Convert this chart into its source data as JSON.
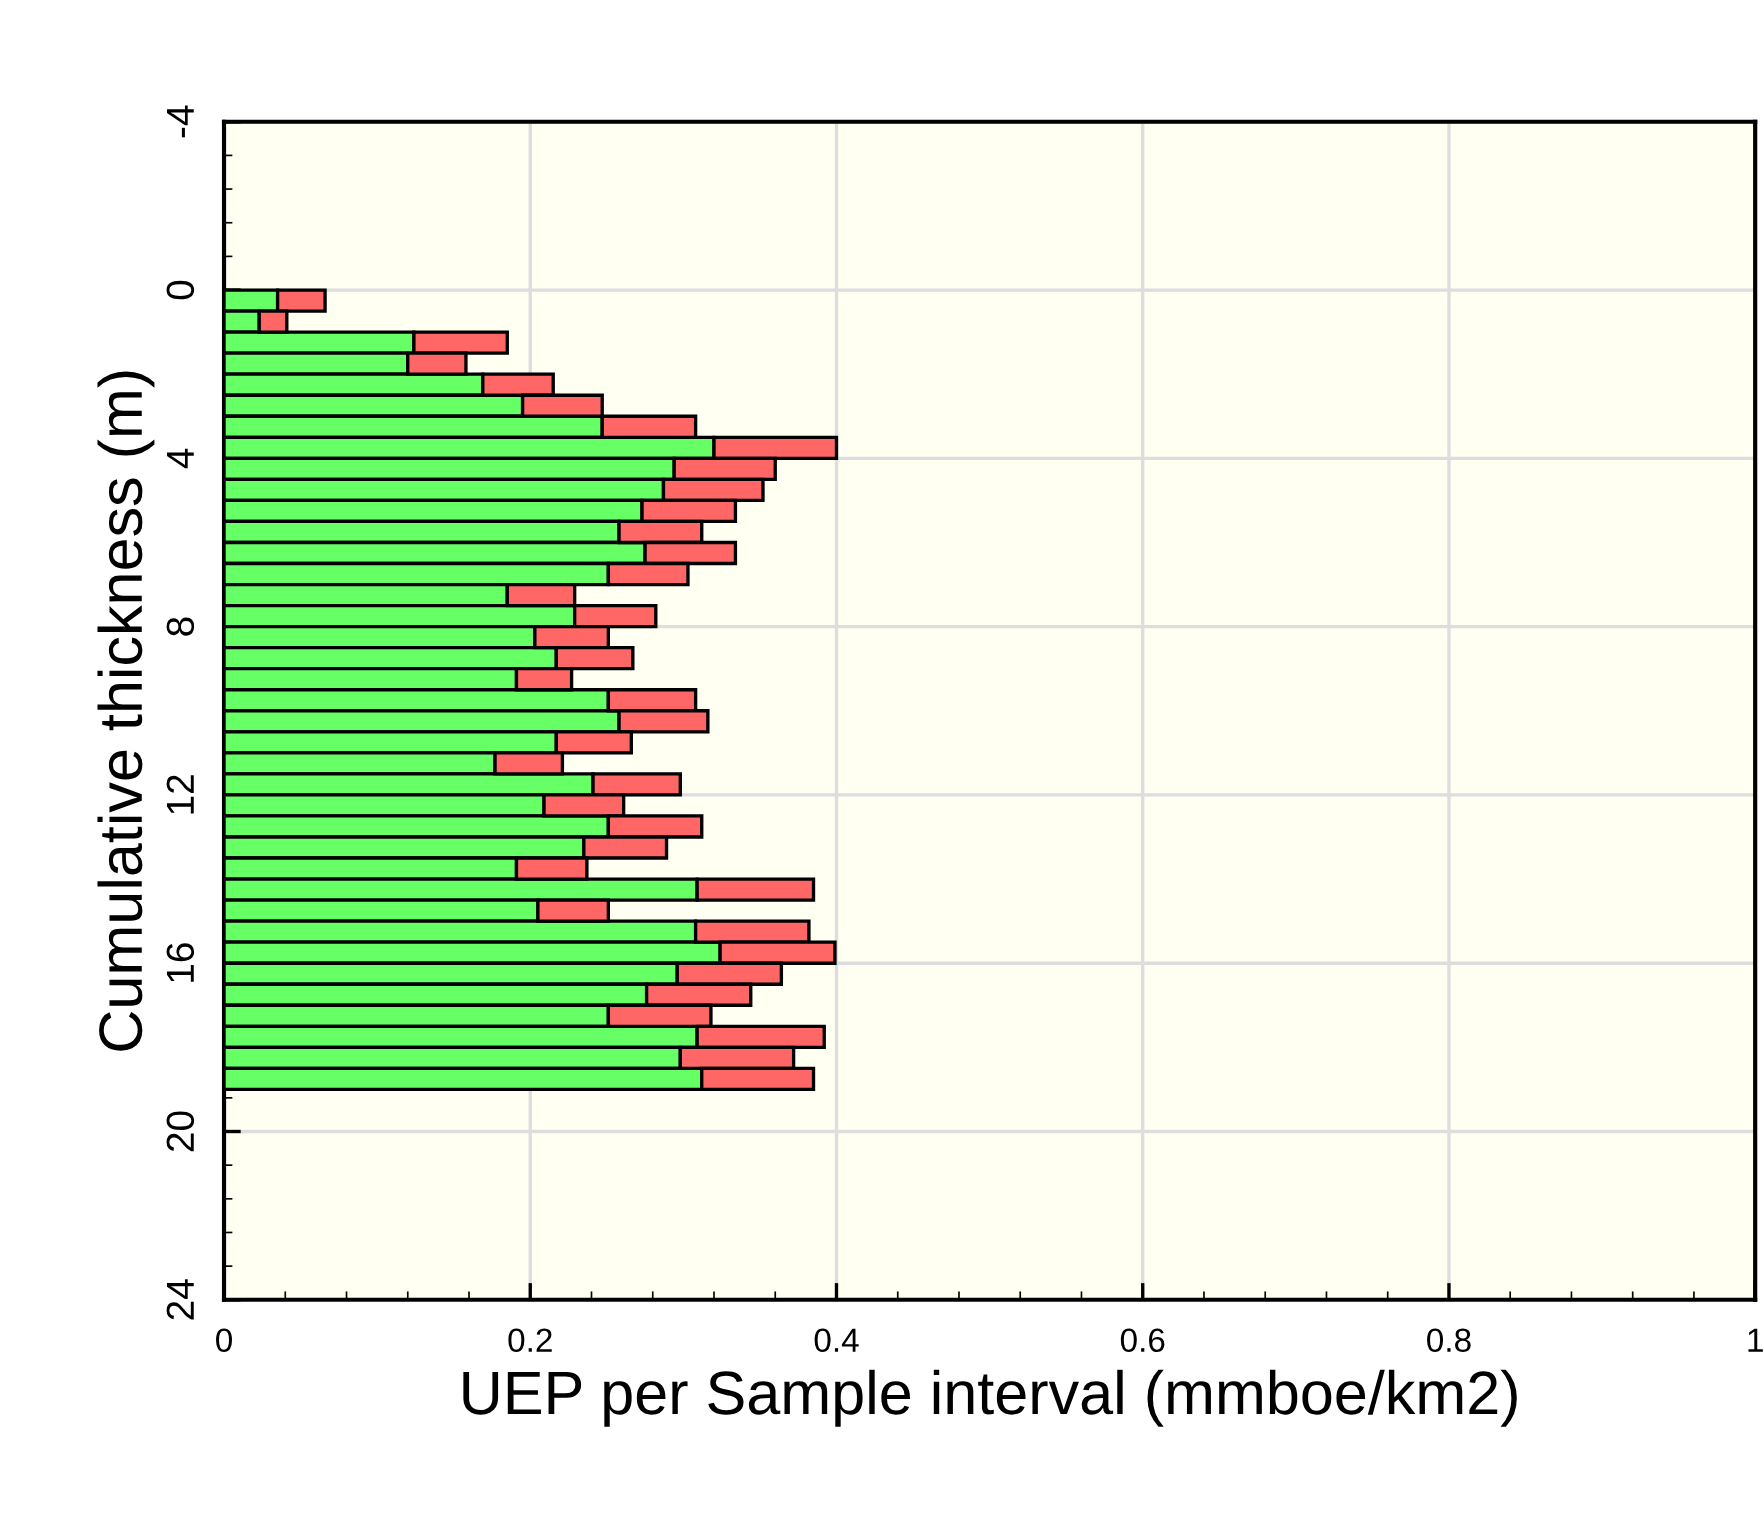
{
  "chart_data": {
    "type": "bar",
    "orientation": "horizontal",
    "stacked": true,
    "xlabel": "UEP per Sample interval (mmboe/km2)",
    "ylabel": "Cumulative thickness (m)",
    "x": [
      0.25,
      0.75,
      1.25,
      1.75,
      2.25,
      2.75,
      3.25,
      3.75,
      4.25,
      4.75,
      5.25,
      5.75,
      6.25,
      6.75,
      7.25,
      7.75,
      8.25,
      8.75,
      9.25,
      9.75,
      10.25,
      10.75,
      11.25,
      11.75,
      12.25,
      12.75,
      13.25,
      13.75,
      14.25,
      14.75,
      15.25,
      15.75,
      16.25,
      16.75,
      17.25,
      17.75,
      18.25,
      18.75
    ],
    "series": [
      {
        "color": "#66ff66",
        "values": [
          0.035,
          0.023,
          0.124,
          0.12,
          0.169,
          0.195,
          0.247,
          0.32,
          0.294,
          0.287,
          0.273,
          0.258,
          0.275,
          0.251,
          0.185,
          0.229,
          0.203,
          0.217,
          0.191,
          0.251,
          0.258,
          0.217,
          0.177,
          0.241,
          0.209,
          0.251,
          0.235,
          0.191,
          0.309,
          0.205,
          0.308,
          0.324,
          0.296,
          0.276,
          0.251,
          0.309,
          0.298,
          0.312
        ]
      },
      {
        "color": "#ff6666",
        "values": [
          0.031,
          0.018,
          0.061,
          0.038,
          0.046,
          0.052,
          0.061,
          0.08,
          0.066,
          0.065,
          0.061,
          0.054,
          0.059,
          0.052,
          0.044,
          0.053,
          0.048,
          0.05,
          0.036,
          0.057,
          0.058,
          0.049,
          0.044,
          0.057,
          0.052,
          0.061,
          0.054,
          0.046,
          0.076,
          0.046,
          0.074,
          0.075,
          0.068,
          0.068,
          0.067,
          0.083,
          0.074,
          0.073
        ]
      }
    ],
    "xlim": [
      0,
      1
    ],
    "xticks": [
      0,
      0.2,
      0.4,
      0.6,
      0.8,
      1
    ],
    "ylim": [
      24,
      -4
    ],
    "yticks": [
      -4,
      0,
      4,
      8,
      12,
      16,
      20,
      24
    ],
    "grid": true
  }
}
